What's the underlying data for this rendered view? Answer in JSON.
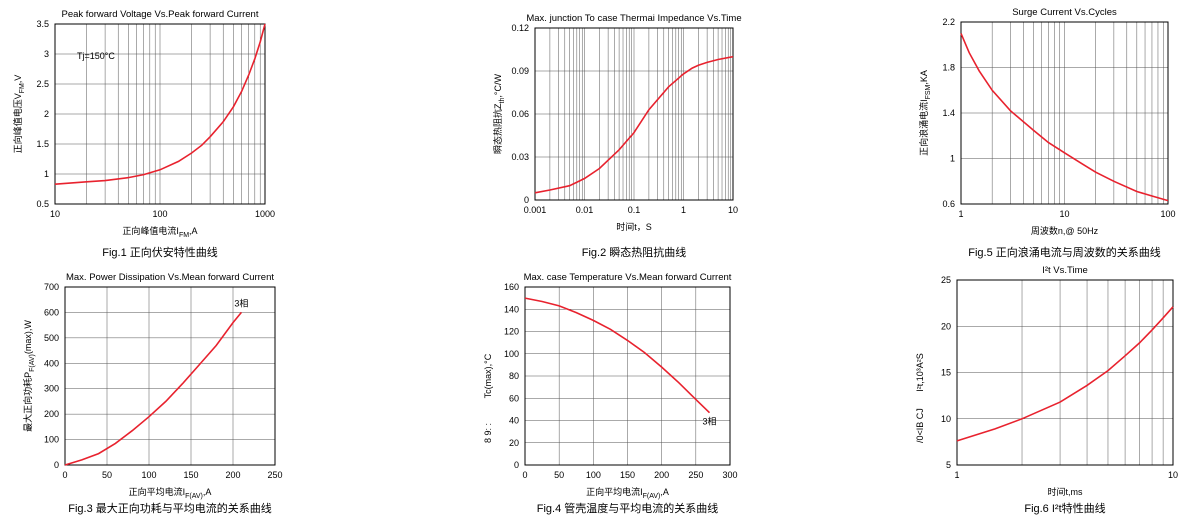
{
  "colors": {
    "curve": "#e8222e",
    "grid": "#555555",
    "frame": "#000000"
  },
  "chart_data": [
    {
      "id": "fig1",
      "type": "line",
      "title": "Peak forward Voltage Vs.Peak forward Current",
      "xlabel": "正向峰值电流I",
      "xlabel_sub": "FM",
      "xlabel_tail": ",A",
      "ylabel": "正向峰值电压V",
      "ylabel_sub": "FM",
      "ylabel_tail": ",V",
      "xscale": "log",
      "xlim": [
        10,
        1000
      ],
      "ylim": [
        0.5,
        3.5
      ],
      "xticks": [
        10,
        100,
        1000
      ],
      "xtick_labels": [
        "10",
        "100",
        "1000"
      ],
      "yticks": [
        0.5,
        1,
        1.5,
        2,
        2.5,
        3,
        3.5
      ],
      "ytick_labels": [
        "0.5",
        "1",
        "1.5",
        "2",
        "2.5",
        "3",
        "3.5"
      ],
      "annotation": "Tj=150°C",
      "grid": true,
      "caption": "Fig.1 正向伏安特性曲线",
      "series": [
        {
          "x": [
            10,
            20,
            30,
            50,
            70,
            100,
            150,
            200,
            250,
            300,
            400,
            500,
            600,
            700,
            800,
            900,
            1000
          ],
          "y": [
            0.83,
            0.87,
            0.89,
            0.94,
            0.99,
            1.07,
            1.21,
            1.35,
            1.48,
            1.62,
            1.87,
            2.12,
            2.38,
            2.65,
            2.92,
            3.2,
            3.5
          ]
        }
      ]
    },
    {
      "id": "fig2",
      "type": "line",
      "title": "Max. junction To case Thermai Impedance Vs.Time",
      "xlabel": "时间t，S",
      "ylabel": "瞬态热阻抗Z",
      "ylabel_sub": "th",
      "ylabel_tail": ",°C/W",
      "xscale": "log",
      "xlim": [
        0.001,
        10
      ],
      "ylim": [
        0,
        0.12
      ],
      "xticks": [
        0.001,
        0.01,
        0.1,
        1,
        10
      ],
      "xtick_labels": [
        "0.001",
        "0.01",
        "0.1",
        "1",
        "10"
      ],
      "yticks": [
        0,
        0.03,
        0.06,
        0.09,
        0.12
      ],
      "ytick_labels": [
        "0",
        "0.03",
        "0.06",
        "0.09",
        "0.12"
      ],
      "grid": true,
      "caption": "Fig.2 瞬态热阻抗曲线",
      "series": [
        {
          "x": [
            0.001,
            0.002,
            0.005,
            0.01,
            0.02,
            0.05,
            0.1,
            0.2,
            0.5,
            1,
            1.5,
            2,
            3,
            5,
            10
          ],
          "y": [
            0.005,
            0.007,
            0.01,
            0.015,
            0.022,
            0.035,
            0.047,
            0.063,
            0.079,
            0.088,
            0.092,
            0.094,
            0.096,
            0.098,
            0.1
          ]
        }
      ]
    },
    {
      "id": "fig5",
      "type": "line",
      "title": "Surge Current Vs.Cycles",
      "xlabel": "周波数n,@ 50Hz",
      "ylabel": "正向浪涌电流I",
      "ylabel_sub": "FSM",
      "ylabel_tail": ",KA",
      "xscale": "log",
      "xlim": [
        1,
        100
      ],
      "ylim": [
        0.6,
        2.2
      ],
      "xticks": [
        1,
        10,
        100
      ],
      "xtick_labels": [
        "1",
        "10",
        "100"
      ],
      "yticks": [
        0.6,
        1,
        1.4,
        1.8,
        2.2
      ],
      "ytick_labels": [
        "0.6",
        "1",
        "1.4",
        "1.8",
        "2.2"
      ],
      "grid": true,
      "caption": "Fig.5 正向浪涌电流与周波数的关系曲线",
      "series": [
        {
          "x": [
            1,
            1.2,
            1.5,
            2,
            3,
            5,
            7,
            10,
            15,
            20,
            30,
            50,
            70,
            100
          ],
          "y": [
            2.1,
            1.93,
            1.77,
            1.6,
            1.42,
            1.25,
            1.14,
            1.05,
            0.95,
            0.88,
            0.8,
            0.71,
            0.67,
            0.63
          ]
        }
      ]
    },
    {
      "id": "fig3",
      "type": "line",
      "title": "Max. Power Dissipation Vs.Mean forward Current",
      "xlabel": "正向平均电流I",
      "xlabel_sub": "F(AV)",
      "xlabel_tail": ",A",
      "ylabel": "最大正向功耗P",
      "ylabel_sub": "F(AV)",
      "ylabel_tail": "(max),W",
      "xscale": "linear",
      "xlim": [
        0,
        250
      ],
      "ylim": [
        0,
        700
      ],
      "xticks": [
        0,
        50,
        100,
        150,
        200,
        250
      ],
      "xtick_labels": [
        "0",
        "50",
        "100",
        "150",
        "200",
        "250"
      ],
      "yticks": [
        0,
        100,
        200,
        300,
        400,
        500,
        600,
        700
      ],
      "ytick_labels": [
        "0",
        "100",
        "200",
        "300",
        "400",
        "500",
        "600",
        "700"
      ],
      "annotation": "3相",
      "grid": true,
      "caption": "Fig.3 最大正向功耗与平均电流的关系曲线",
      "series": [
        {
          "x": [
            0,
            20,
            40,
            60,
            80,
            100,
            120,
            140,
            160,
            180,
            200,
            210
          ],
          "y": [
            0,
            20,
            45,
            85,
            135,
            190,
            250,
            320,
            395,
            470,
            560,
            600
          ]
        }
      ]
    },
    {
      "id": "fig4",
      "type": "line",
      "title": "Max. case Temperature Vs.Mean forward Current",
      "xlabel": "正向平均电流I",
      "xlabel_sub": "F(AV)",
      "xlabel_tail": ",A",
      "ylabel": "Tc(max),°C",
      "ylabel_prefix": "8 9: :",
      "xscale": "linear",
      "xlim": [
        0,
        300
      ],
      "ylim": [
        0,
        160
      ],
      "xticks": [
        0,
        50,
        100,
        150,
        200,
        250,
        300
      ],
      "xtick_labels": [
        "0",
        "50",
        "100",
        "150",
        "200",
        "250",
        "300"
      ],
      "yticks": [
        0,
        20,
        40,
        60,
        80,
        100,
        120,
        140,
        160
      ],
      "ytick_labels": [
        "0",
        "20",
        "40",
        "60",
        "80",
        "100",
        "120",
        "140",
        "160"
      ],
      "annotation": "3相",
      "grid": true,
      "caption": "Fig.4 管壳温度与平均电流的关系曲线",
      "series": [
        {
          "x": [
            0,
            25,
            50,
            75,
            100,
            125,
            150,
            175,
            200,
            225,
            250,
            270
          ],
          "y": [
            150,
            147,
            143,
            137,
            130,
            122,
            112,
            101,
            88,
            74,
            59,
            47
          ]
        }
      ]
    },
    {
      "id": "fig6",
      "type": "line",
      "title": "I²t  Vs.Time",
      "xlabel": "时间t,ms",
      "ylabel": "I²t,10³A²S",
      "ylabel_prefix": "/0<IB   CJ",
      "xscale": "log",
      "xlim": [
        1,
        10
      ],
      "ylim": [
        5,
        25
      ],
      "xticks": [
        1,
        10
      ],
      "xtick_labels": [
        "1",
        "10"
      ],
      "yticks": [
        5,
        10,
        15,
        20,
        25
      ],
      "ytick_labels": [
        "5",
        "10",
        "15",
        "20",
        "25"
      ],
      "grid": true,
      "caption": "Fig.6 I²t特性曲线",
      "series": [
        {
          "x": [
            1,
            1.5,
            2,
            3,
            4,
            5,
            6,
            7,
            8,
            9,
            10
          ],
          "y": [
            7.6,
            8.9,
            10.0,
            11.8,
            13.6,
            15.2,
            16.8,
            18.2,
            19.6,
            20.9,
            22.1
          ]
        }
      ]
    }
  ]
}
